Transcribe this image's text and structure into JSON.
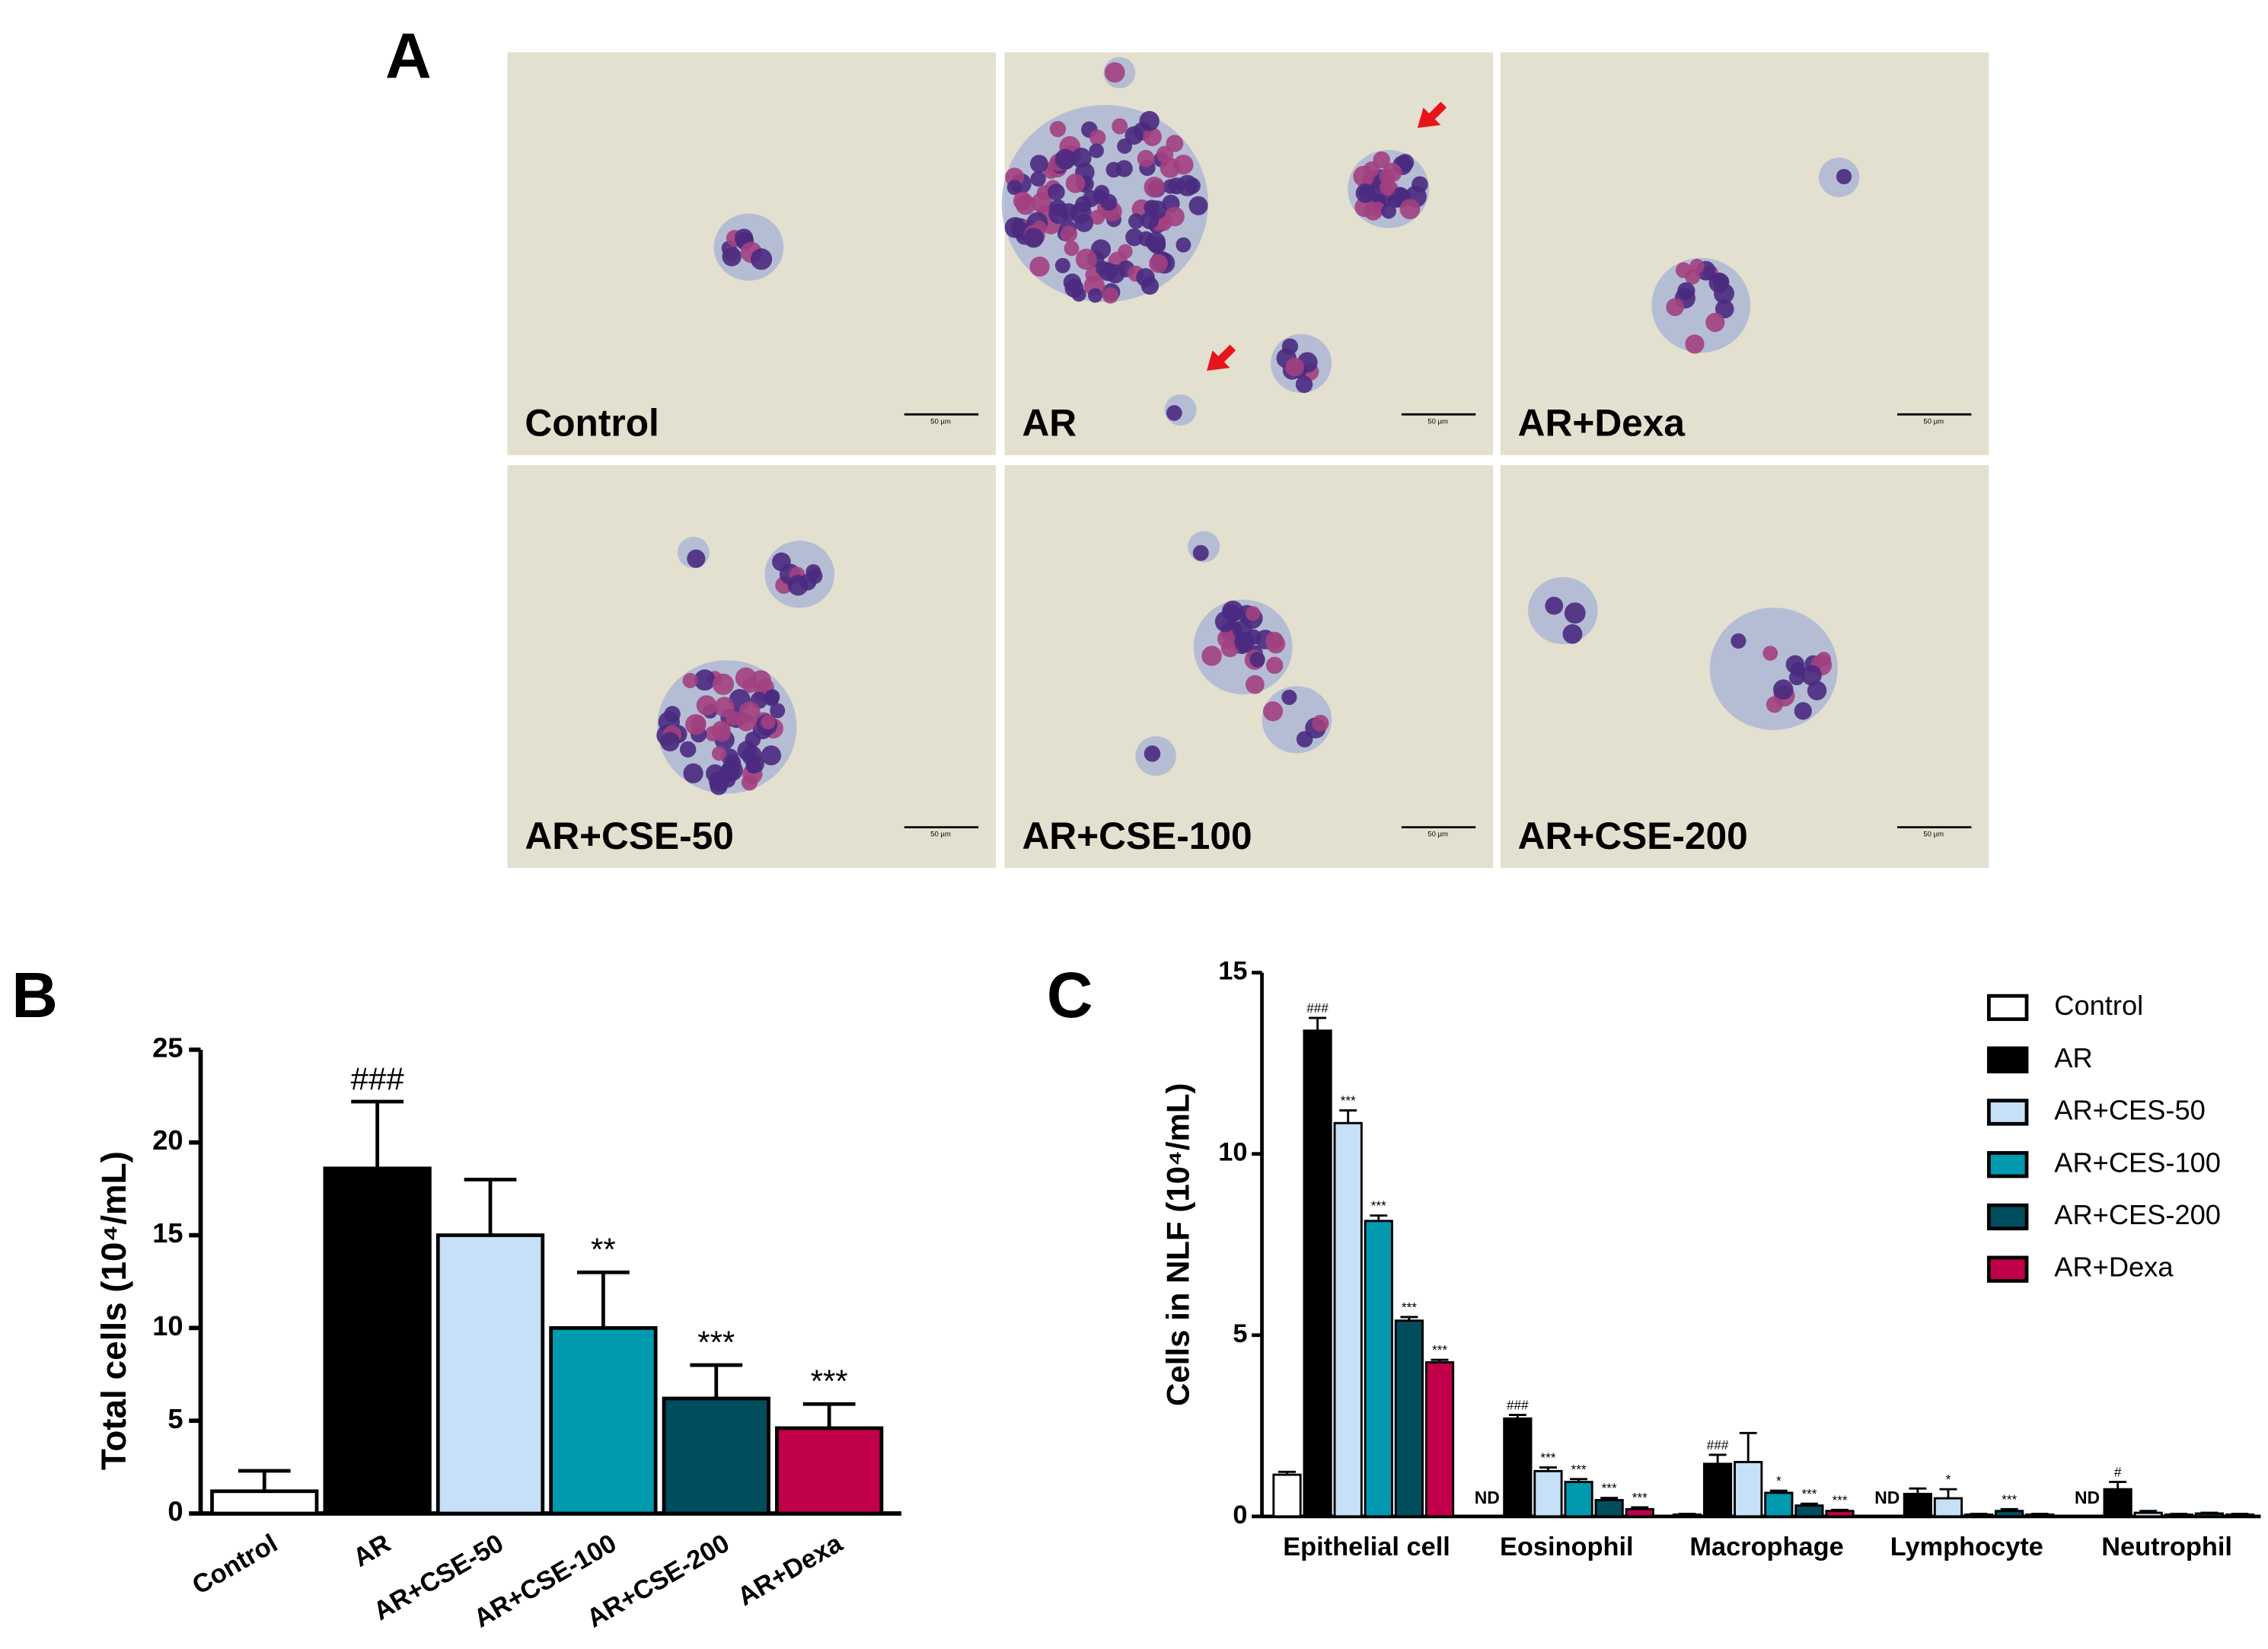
{
  "panel_a": {
    "label": "A",
    "images": [
      {
        "label": "Control",
        "scale_bar": "50 µm"
      },
      {
        "label": "AR",
        "scale_bar": "50 µm"
      },
      {
        "label": "AR+Dexa",
        "scale_bar": "50 µm"
      },
      {
        "label": "AR+CSE-50",
        "scale_bar": "50 µm"
      },
      {
        "label": "AR+CSE-100",
        "scale_bar": "50 µm"
      },
      {
        "label": "AR+CSE-200",
        "scale_bar": "50 µm"
      }
    ]
  },
  "chart_data": [
    {
      "type": "bar",
      "panel": "B",
      "ylabel": "Total cells  (10⁴/mL)",
      "categories": [
        "Control",
        "AR",
        "AR+CSE-50",
        "AR+CSE-100",
        "AR+CSE-200",
        "AR+Dexa"
      ],
      "values": [
        1.2,
        18.6,
        15.0,
        10.0,
        6.2,
        4.6
      ],
      "errors": [
        1.1,
        3.6,
        3.0,
        3.0,
        1.8,
        1.3
      ],
      "annotations": [
        null,
        "###",
        null,
        "**",
        "***",
        "***"
      ],
      "colors": [
        "#ffffff",
        "#000000",
        "#c5e0f7",
        "#0099b0",
        "#004d5e",
        "#c0004a"
      ],
      "ylim": [
        0,
        25
      ],
      "yticks": [
        0,
        5,
        10,
        15,
        20,
        25
      ]
    },
    {
      "type": "grouped_bar",
      "panel": "C",
      "ylabel": "Cells in NLF (10⁴/mL)",
      "categories": [
        "Epithelial cell",
        "Eosinophil",
        "Macrophage",
        "Lymphocyte",
        "Neutrophil"
      ],
      "ylim": [
        0,
        15
      ],
      "yticks": [
        0,
        5,
        10,
        15
      ],
      "legend": "top-right",
      "series": [
        {
          "name": "Control",
          "color": "#ffffff",
          "values": [
            1.15,
            null,
            0.05,
            null,
            null
          ],
          "errors": [
            0.08,
            null,
            0.02,
            null,
            null
          ],
          "value_labels": [
            null,
            "ND",
            null,
            "ND",
            "ND"
          ],
          "annotations": [
            null,
            null,
            null,
            null,
            null
          ]
        },
        {
          "name": "AR",
          "color": "#000000",
          "values": [
            13.4,
            2.7,
            1.45,
            0.62,
            0.75
          ],
          "errors": [
            0.35,
            0.1,
            0.25,
            0.15,
            0.2
          ],
          "annotations": [
            "###",
            "###",
            "###",
            null,
            "#"
          ]
        },
        {
          "name": "AR+CES-50",
          "color": "#c5e0f7",
          "values": [
            10.85,
            1.25,
            1.5,
            0.5,
            0.1
          ],
          "errors": [
            0.35,
            0.1,
            0.8,
            0.25,
            0.05
          ],
          "annotations": [
            "***",
            "***",
            null,
            "*",
            null
          ]
        },
        {
          "name": "AR+CES-100",
          "color": "#0099b0",
          "values": [
            8.15,
            0.95,
            0.65,
            0.05,
            0.05
          ],
          "errors": [
            0.15,
            0.08,
            0.06,
            0.02,
            0.02
          ],
          "annotations": [
            "***",
            "***",
            "*",
            null,
            null
          ]
        },
        {
          "name": "AR+CES-200",
          "color": "#004d5e",
          "values": [
            5.4,
            0.45,
            0.3,
            0.15,
            0.08
          ],
          "errors": [
            0.1,
            0.06,
            0.05,
            0.05,
            0.02
          ],
          "annotations": [
            "***",
            "***",
            "***",
            "***",
            null
          ]
        },
        {
          "name": "AR+Dexa",
          "color": "#c0004a",
          "values": [
            4.25,
            0.2,
            0.15,
            0.05,
            0.05
          ],
          "errors": [
            0.07,
            0.05,
            0.03,
            0.02,
            0.02
          ],
          "annotations": [
            "***",
            "***",
            "***",
            null,
            null
          ]
        }
      ]
    }
  ]
}
